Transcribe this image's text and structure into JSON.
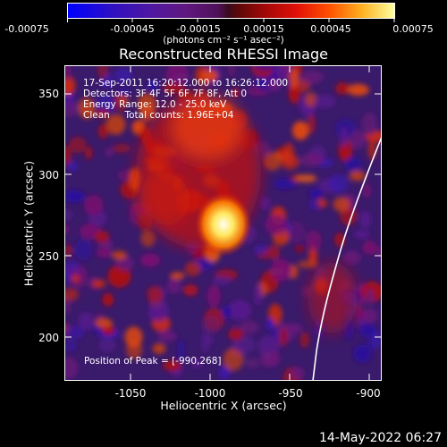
{
  "colorbar": {
    "ticks": [
      "-0.00075",
      "-0.00045",
      "-0.00015",
      "0.00015",
      "0.00045",
      "0.00075"
    ],
    "units": "(photons cm⁻² s⁻¹ asec⁻²)"
  },
  "title": "Reconstructed RHESSI Image",
  "info": {
    "time": "17-Sep-2011 16:20:12.000 to 16:26:12.000",
    "detectors": "Detectors: 3F 4F 5F 6F 7F 8F, Att 0",
    "energy": "Energy Range: 12.0 - 25.0 keV",
    "clean": "Clean     Total counts: 1.96E+04",
    "peak": "Position of Peak = [-990,268]"
  },
  "axes": {
    "xlabel": "Heliocentric X (arcsec)",
    "ylabel": "Heliocentric Y (arcsec)",
    "xticks": [
      "-1050",
      "-1000",
      "-950",
      "-900"
    ],
    "yticks": [
      "350",
      "300",
      "250",
      "200"
    ]
  },
  "timestamp": "14-May-2022 06:27",
  "colors": {
    "low": "#1a0090",
    "mid": "#c01808",
    "high": "#fff4b0"
  }
}
